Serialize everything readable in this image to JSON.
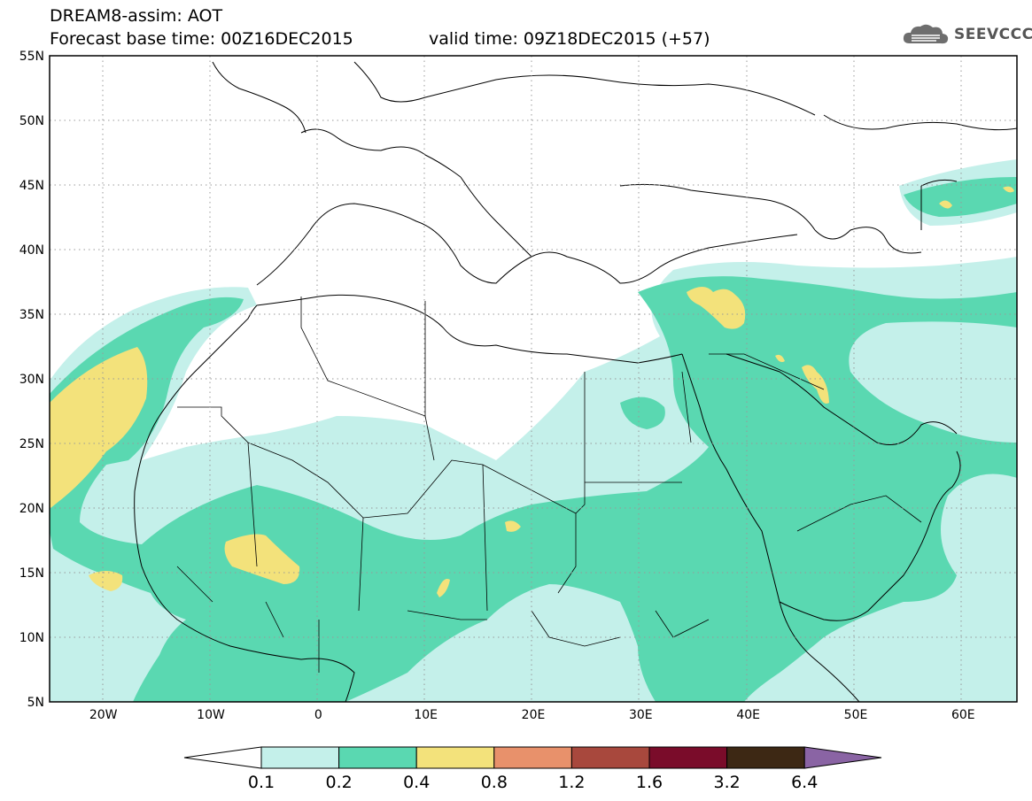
{
  "header": {
    "title": "DREAM8-assim: AOT",
    "base_time": "Forecast base time: 00Z16DEC2015",
    "valid_time": "valid time: 09Z18DEC2015 (+57)",
    "logo_text": "SEEVCCC"
  },
  "map": {
    "lon_range": [
      -25,
      65
    ],
    "lat_range": [
      5,
      55
    ],
    "lon_ticks": [
      "20W",
      "10W",
      "0",
      "10E",
      "20E",
      "30E",
      "40E",
      "50E",
      "60E"
    ],
    "lat_ticks": [
      "55N",
      "50N",
      "45N",
      "40N",
      "35N",
      "30N",
      "25N",
      "20N",
      "15N",
      "10N",
      "5N"
    ],
    "gridlines": "dotted"
  },
  "legend": {
    "labels": [
      "0.1",
      "0.2",
      "0.4",
      "0.8",
      "1.2",
      "1.6",
      "3.2",
      "6.4"
    ],
    "colors": [
      "#ffffff",
      "#c4f0ea",
      "#5ad8b1",
      "#f3e27b",
      "#e8916b",
      "#a8483d",
      "#7a0c2a",
      "#3d2814",
      "#8a64a4"
    ]
  },
  "colors": {
    "level_0_1": "#c4f0ea",
    "level_0_2": "#5ad8b1",
    "level_0_4": "#f3e27b"
  }
}
